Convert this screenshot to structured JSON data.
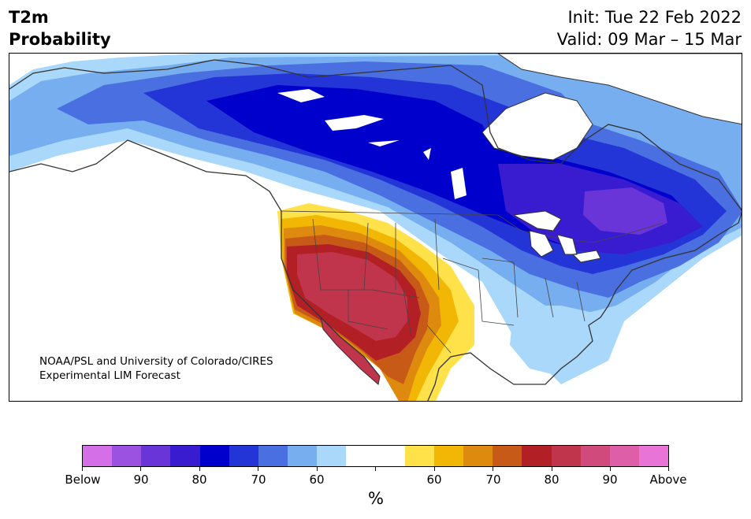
{
  "header": {
    "variable": "T2m",
    "product": "Probability",
    "init": "Init: Tue 22 Feb 2022",
    "valid": "Valid: 09 Mar – 15 Mar"
  },
  "credit": {
    "line1": "NOAA/PSL and University of Colorado/CIRES",
    "line2": "Experimental LIM Forecast"
  },
  "map": {
    "region": "North America",
    "below_colors": [
      "#d56fe8",
      "#9b52e0",
      "#6a35d8",
      "#3a1cd0",
      "#0000cc",
      "#2435d8",
      "#4a6fe0",
      "#77aef0",
      "#aad8fb"
    ],
    "neutral_color": "#ffffff",
    "above_colors": [
      "#ffe14a",
      "#f2b705",
      "#de8a0e",
      "#c85a18",
      "#b22025",
      "#c0344c",
      "#d04a7b",
      "#de5ea8",
      "#e874d8"
    ]
  },
  "colorbar": {
    "unit": "%",
    "tick_labels": [
      "Below",
      "90",
      "80",
      "70",
      "60",
      "",
      "60",
      "70",
      "80",
      "90",
      "Above"
    ],
    "colors": [
      "#d56fe8",
      "#9b52e0",
      "#6a35d8",
      "#3a1cd0",
      "#0000cc",
      "#2435d8",
      "#4a6fe0",
      "#77aef0",
      "#aad8fb",
      "#ffffff",
      "#ffffff",
      "#ffe14a",
      "#f2b705",
      "#de8a0e",
      "#c85a18",
      "#b22025",
      "#c0344c",
      "#d04a7b",
      "#de5ea8",
      "#e874d8"
    ]
  }
}
